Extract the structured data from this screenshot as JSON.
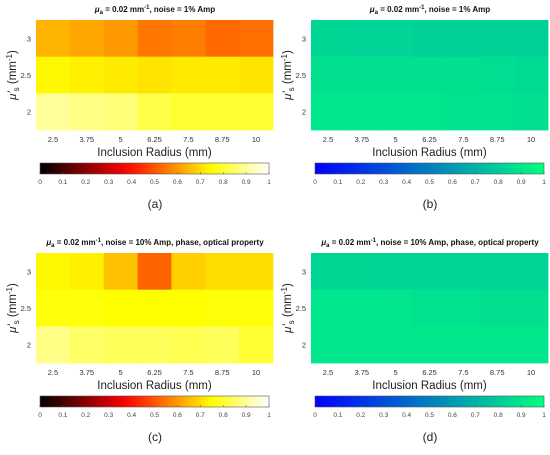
{
  "chart_data": [
    {
      "type": "heatmap",
      "panel_label": "(a)",
      "title_prefix": "μ",
      "title_sub": "a",
      "title_rest": " = 0.02 mm",
      "title_sup": "-1",
      "title_tail": ", noise = 1% Amp",
      "xlabel": "Inclusion Radius (mm)",
      "ylabel_mu": "μ'",
      "ylabel_sub": "s",
      "ylabel_unit": " (mm",
      "ylabel_sup": "-1",
      "ylabel_close": ")",
      "x": [
        "2.5",
        "3.75",
        "5",
        "6.25",
        "7.5",
        "8.75",
        "10"
      ],
      "y": [
        "3",
        "2.5",
        "2"
      ],
      "values": [
        [
          0.64,
          0.62,
          0.6,
          0.55,
          0.56,
          0.53,
          0.54
        ],
        [
          0.74,
          0.73,
          0.72,
          0.71,
          0.72,
          0.72,
          0.71
        ],
        [
          0.9,
          0.88,
          0.87,
          0.82,
          0.8,
          0.8,
          0.8
        ]
      ],
      "colormap": "hot",
      "clim": [
        0,
        1
      ],
      "colorbar_ticks": [
        "0",
        "0.1",
        "0.2",
        "0.3",
        "0.4",
        "0.5",
        "0.6",
        "0.7",
        "0.8",
        "0.9",
        "1"
      ]
    },
    {
      "type": "heatmap",
      "panel_label": "(b)",
      "title_prefix": "μ",
      "title_sub": "a",
      "title_rest": " = 0.02 mm",
      "title_sup": "-1",
      "title_tail": ", noise = 1% Amp",
      "xlabel": "Inclusion Radius (mm)",
      "ylabel_mu": "μ'",
      "ylabel_sub": "s",
      "ylabel_unit": " (mm",
      "ylabel_sup": "-1",
      "ylabel_close": ")",
      "x": [
        "2.5",
        "3.75",
        "5",
        "6.25",
        "7.5",
        "8.75",
        "10"
      ],
      "y": [
        "3",
        "2.5",
        "2"
      ],
      "values": [
        [
          0.84,
          0.83,
          0.83,
          0.82,
          0.82,
          0.82,
          0.82
        ],
        [
          0.88,
          0.88,
          0.88,
          0.88,
          0.88,
          0.87,
          0.86
        ],
        [
          0.9,
          0.9,
          0.9,
          0.9,
          0.89,
          0.89,
          0.88
        ]
      ],
      "colormap": "winter",
      "clim": [
        0,
        1
      ],
      "colorbar_ticks": [
        "0",
        "0.1",
        "0.2",
        "0.3",
        "0.4",
        "0.5",
        "0.6",
        "0.7",
        "0.8",
        "0.9",
        "1"
      ]
    },
    {
      "type": "heatmap",
      "panel_label": "(c)",
      "title_prefix": "μ",
      "title_sub": "a",
      "title_rest": " = 0.02 mm",
      "title_sup": "-1",
      "title_tail": ", noise = 10% Amp, phase, optical property",
      "xlabel": "Inclusion Radius (mm)",
      "ylabel_mu": "μ'",
      "ylabel_sub": "s",
      "ylabel_unit": " (mm",
      "ylabel_sup": "-1",
      "ylabel_close": ")",
      "x": [
        "2.5",
        "3.75",
        "5",
        "6.25",
        "7.5",
        "8.75",
        "10"
      ],
      "y": [
        "3",
        "2.5",
        "2"
      ],
      "values": [
        [
          0.74,
          0.73,
          0.66,
          0.52,
          0.68,
          0.7,
          0.7
        ],
        [
          0.76,
          0.76,
          0.75,
          0.75,
          0.75,
          0.76,
          0.76
        ],
        [
          0.88,
          0.85,
          0.84,
          0.84,
          0.83,
          0.84,
          0.8
        ]
      ],
      "colormap": "hot",
      "clim": [
        0,
        1
      ],
      "colorbar_ticks": [
        "0",
        "0.1",
        "0.2",
        "0.3",
        "0.4",
        "0.5",
        "0.6",
        "0.7",
        "0.8",
        "0.9",
        "1"
      ]
    },
    {
      "type": "heatmap",
      "panel_label": "(d)",
      "title_prefix": "μ",
      "title_sub": "a",
      "title_rest": " = 0.02 mm",
      "title_sup": "-1",
      "title_tail": ", noise = 10% Amp, phase, optical property",
      "xlabel": "Inclusion Radius (mm)",
      "ylabel_mu": "μ'",
      "ylabel_sub": "s",
      "ylabel_unit": " (mm",
      "ylabel_sup": "-1",
      "ylabel_close": ")",
      "x": [
        "2.5",
        "3.75",
        "5",
        "6.25",
        "7.5",
        "8.75",
        "10"
      ],
      "y": [
        "3",
        "2.5",
        "2"
      ],
      "values": [
        [
          0.84,
          0.84,
          0.83,
          0.83,
          0.83,
          0.83,
          0.83
        ],
        [
          0.9,
          0.9,
          0.9,
          0.89,
          0.89,
          0.88,
          0.88
        ],
        [
          0.91,
          0.91,
          0.91,
          0.91,
          0.91,
          0.91,
          0.91
        ]
      ],
      "colormap": "winter",
      "clim": [
        0,
        1
      ],
      "colorbar_ticks": [
        "0",
        "0.1",
        "0.2",
        "0.3",
        "0.4",
        "0.5",
        "0.6",
        "0.7",
        "0.8",
        "0.9",
        "1"
      ]
    }
  ]
}
